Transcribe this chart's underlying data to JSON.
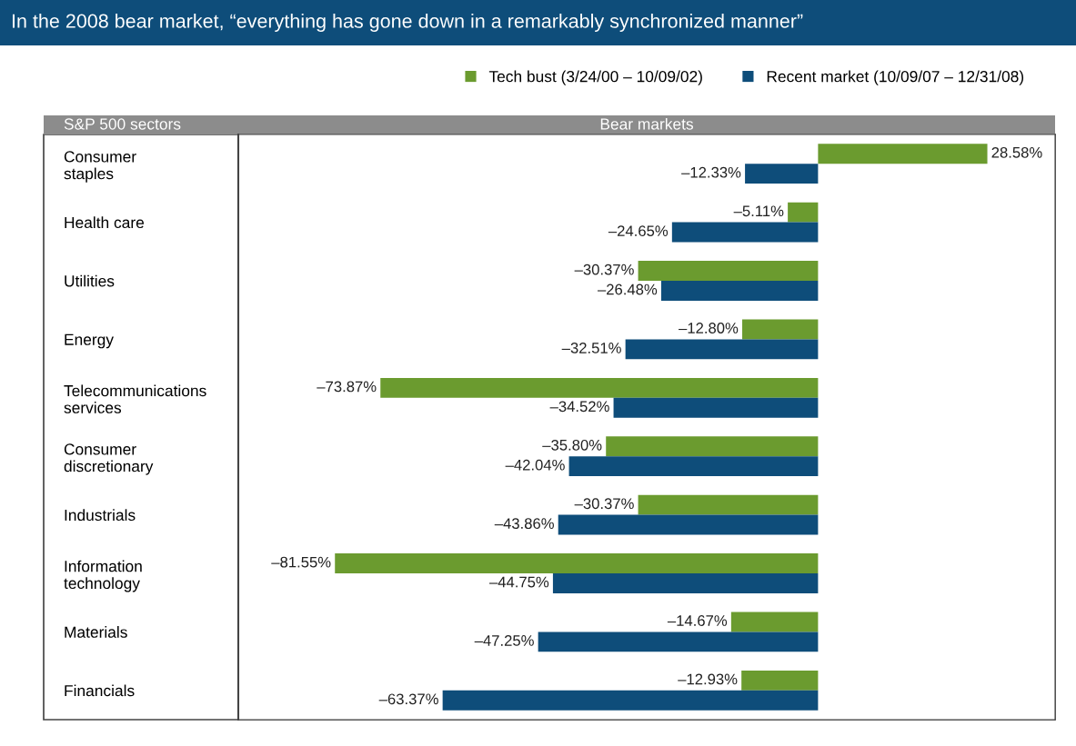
{
  "chart_data": {
    "type": "bar",
    "orientation": "horizontal",
    "title": "In the 2008 bear market, “everything has gone down in a remarkably synchronized manner”",
    "xlabel": "Bear markets",
    "ylabel": "S&P 500 sectors",
    "categories": [
      "Consumer\nstaples",
      "Health care",
      "Utilities",
      "Energy",
      "Telecommunications\nservices",
      "Consumer\ndiscretionary",
      "Industrials",
      "Information\ntechnology",
      "Materials",
      "Financials"
    ],
    "series": [
      {
        "name": "Tech bust (3/24/00 – 10/09/02)",
        "color": "#6b9b2f",
        "values": [
          28.58,
          -5.11,
          -30.37,
          -12.8,
          -73.87,
          -35.8,
          -30.37,
          -81.55,
          -14.67,
          -12.93
        ],
        "value_labels": [
          "28.58%",
          "–5.11%",
          "–30.37%",
          "–12.80%",
          "–73.87%",
          "–35.80%",
          "–30.37%",
          "–81.55%",
          "–14.67%",
          "–12.93%"
        ]
      },
      {
        "name": "Recent market (10/09/07 – 12/31/08)",
        "color": "#0e4d7a",
        "values": [
          -12.33,
          -24.65,
          -26.48,
          -32.51,
          -34.52,
          -42.04,
          -43.86,
          -44.75,
          -47.25,
          -63.37
        ],
        "value_labels": [
          "–12.33%",
          "–24.65%",
          "–26.48%",
          "–32.51%",
          "–34.52%",
          "–42.04%",
          "–43.86%",
          "–44.75%",
          "–47.25%",
          "–63.37%"
        ]
      }
    ],
    "legend": "top"
  }
}
